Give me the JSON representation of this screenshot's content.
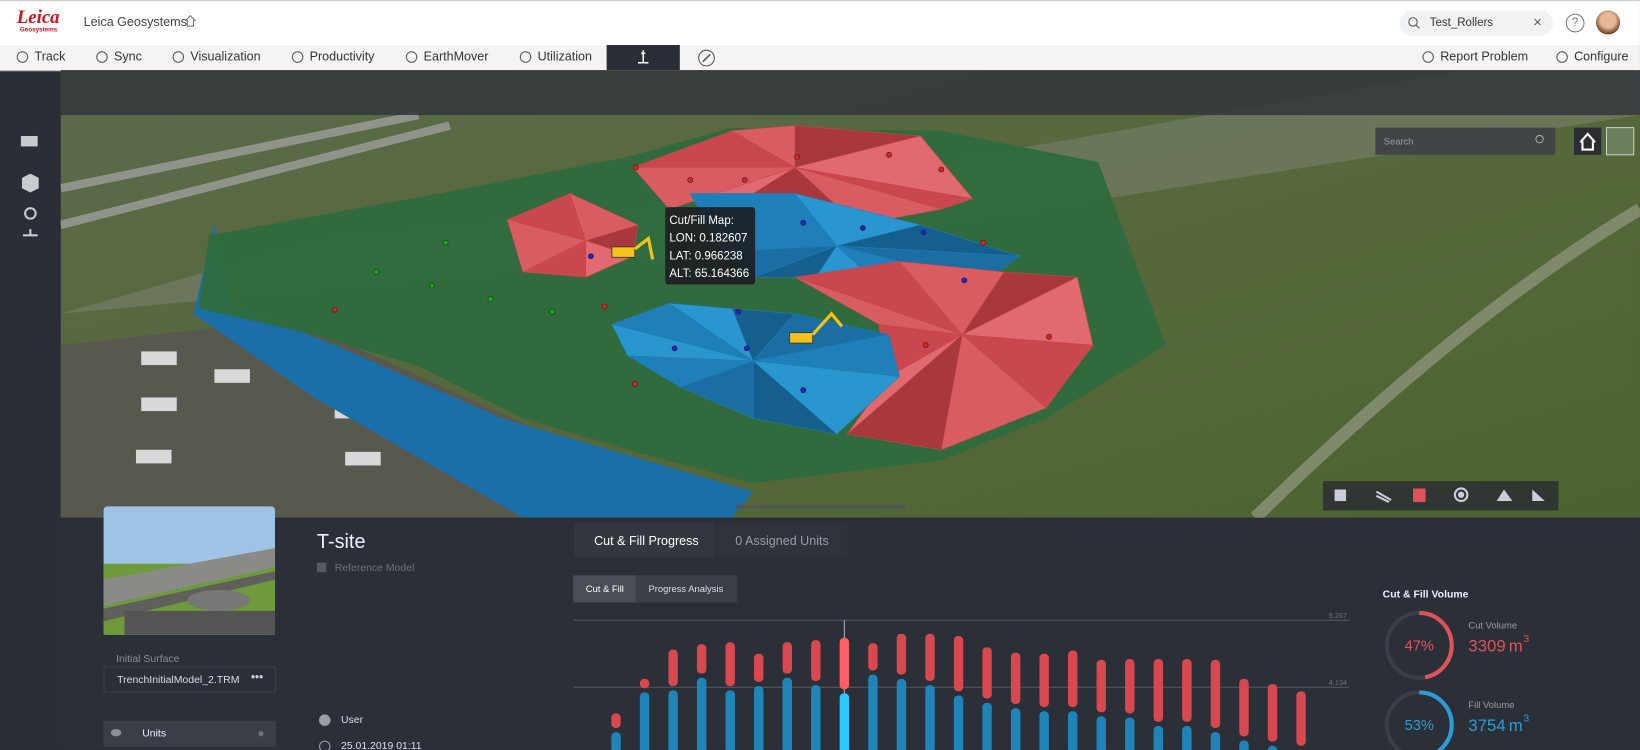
{
  "header": {
    "logo": "Leica",
    "logo_sub": "Geosystems",
    "app_name": "Leica Geosystems",
    "search": "Test_Rollers"
  },
  "nav": {
    "tabs": [
      "Track",
      "Sync",
      "Visualization",
      "Productivity",
      "EarthMover",
      "Utilization"
    ],
    "actions": [
      "Report Problem",
      "Configure"
    ]
  },
  "map": {
    "search_placeholder": "Search",
    "tooltip": {
      "title": "Cut/Fill Map:",
      "lines": [
        "LON: 0.182607",
        "LAT: 0.966238",
        "ALT: 65.164366"
      ]
    }
  },
  "site": {
    "name": "T-site",
    "model": "Reference Model",
    "initial_surface_label": "Initial Surface",
    "initial_surface": "TrenchInitialModel_2.TRM",
    "units": "Units",
    "user": "User",
    "date": "25.01.2019 01:11"
  },
  "panel": {
    "tabs": [
      "Cut & Fill Progress",
      "0 Assigned Units"
    ],
    "subtabs": [
      "Cut & Fill",
      "Progress Analysis"
    ]
  },
  "chart_data": {
    "type": "bar",
    "ylim": [
      0,
      8.267
    ],
    "yticks": [
      4.134,
      8.267
    ],
    "highlight": 8,
    "series": [
      {
        "color": "#1f8ec6",
        "values": [
          1.36,
          3.81,
          3.94,
          4.72,
          3.94,
          4.2,
          4.72,
          4.26,
          3.75,
          4.91,
          4.65,
          4.26,
          3.62,
          3.17,
          2.84,
          2.65,
          2.65,
          2.33,
          2.26,
          1.74,
          1.74,
          1.36,
          0.84,
          0.52,
          0.26
        ]
      },
      {
        "color": "#d9484f",
        "values": [
          0.9,
          0.58,
          2.26,
          1.81,
          2.71,
          1.74,
          1.94,
          2.52,
          3.17,
          1.68,
          2.52,
          2.91,
          3.42,
          3.17,
          3.17,
          3.29,
          3.49,
          3.23,
          3.36,
          3.88,
          3.88,
          4.2,
          3.55,
          3.55,
          3.36
        ]
      }
    ]
  },
  "volume": {
    "title": "Cut & Fill Volume",
    "cut": {
      "label": "Cut Volume",
      "percent": {
        "value": 47,
        "label": "47%"
      },
      "value": 3309,
      "unit": "m",
      "unit_power": "3",
      "color": "#e0525a"
    },
    "fill": {
      "label": "Fill Volume",
      "percent": {
        "value": 53,
        "label": "53%"
      },
      "value": 3754,
      "unit": "m",
      "unit_power": "3",
      "color": "#2d9bd6"
    }
  }
}
